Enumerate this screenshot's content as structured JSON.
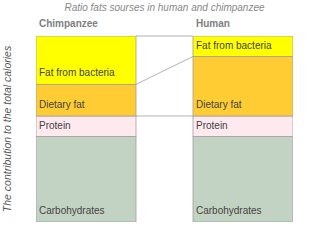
{
  "chart_data": {
    "type": "bar",
    "stacked": true,
    "tick_labels": false,
    "title": "Ratio fats sourses in human and chimpanzee",
    "y_label": "The contribution to the total calories",
    "categories": [
      "Chimpanzee",
      "Human"
    ],
    "ylim": [
      0,
      100
    ],
    "series": [
      {
        "name": "Carbohydrates",
        "color": "#c3d3c3",
        "values": [
          46,
          46
        ]
      },
      {
        "name": "Protein",
        "color": "#fde9ee",
        "values": [
          11,
          11
        ]
      },
      {
        "name": "Dietary fat",
        "color": "#ffcc33",
        "values": [
          17,
          32
        ]
      },
      {
        "name": "Fat from bacteria",
        "color": "#ffff00",
        "values": [
          26,
          11
        ]
      }
    ]
  }
}
